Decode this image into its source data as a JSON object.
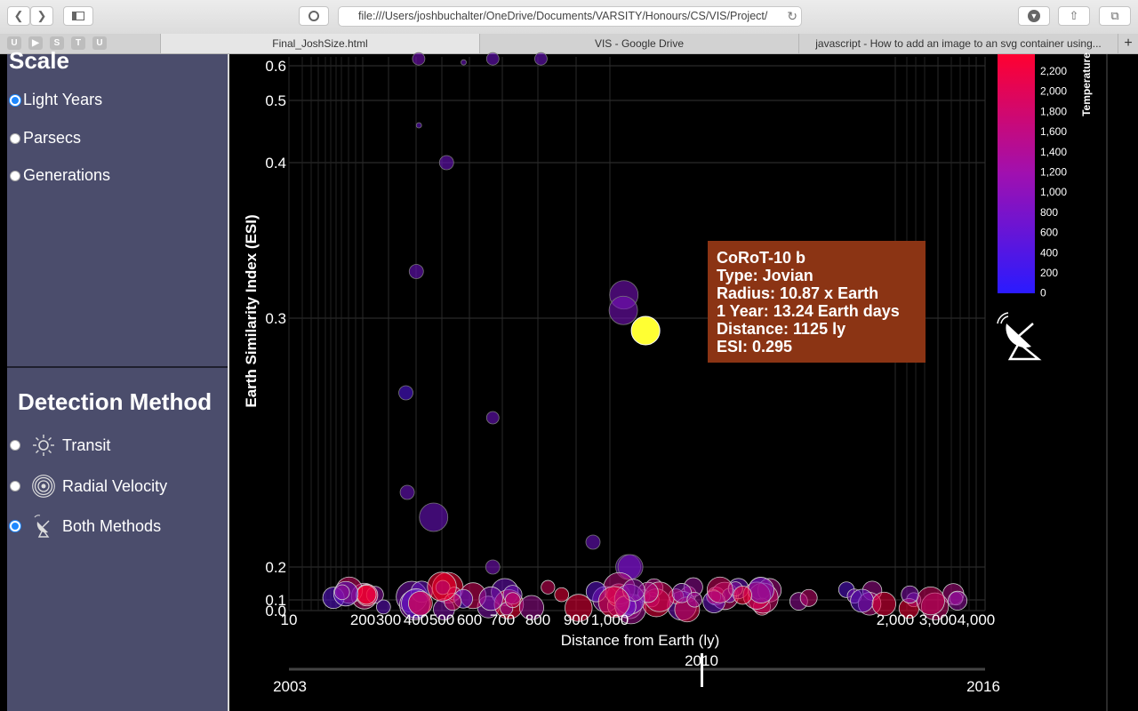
{
  "browser": {
    "url": "file:///Users/joshbuchalter/OneDrive/Documents/VARSITY/Honours/CS/VIS/Project/",
    "favorites": [
      "U",
      "",
      "S",
      "T",
      "U"
    ],
    "tabs": [
      {
        "label": "Final_JoshSize.html",
        "active": true
      },
      {
        "label": "VIS - Google Drive",
        "active": false
      },
      {
        "label": "javascript - How to add an image to an svg container using...",
        "active": false
      }
    ],
    "new_tab_glyph": "+"
  },
  "sidebar": {
    "scale_title": "Scale",
    "scale_options": [
      {
        "label": "Light Years",
        "selected": true
      },
      {
        "label": "Parsecs",
        "selected": false
      },
      {
        "label": "Generations",
        "selected": false
      }
    ],
    "detection_title": "Detection Method",
    "detection_options": [
      {
        "label": "Transit",
        "icon": "sun-icon",
        "selected": false
      },
      {
        "label": "Radial Velocity",
        "icon": "radial-waves-icon",
        "selected": false
      },
      {
        "label": "Both Methods",
        "icon": "satellite-dish-icon",
        "selected": true
      }
    ]
  },
  "tooltip": {
    "name": "CoRoT-10 b",
    "type": "Type: Jovian",
    "radius": "Radius: 10.87 x Earth",
    "year": "1 Year: 13.24 Earth days",
    "distance": "Distance: 1125 ly",
    "esi": "ESI: 0.295"
  },
  "timeline": {
    "start": "2003",
    "end": "2016",
    "current": "2010"
  },
  "chart_data": {
    "type": "scatter",
    "xlabel": "Distance from Earth (ly)",
    "ylabel": "Earth Similarity Index (ESI)",
    "y_ticks": [
      "0.6",
      "0.5",
      "0.4",
      "0.3",
      "0.2",
      "0.1",
      "0.0"
    ],
    "x_tick_labels": [
      "10",
      "200",
      "300",
      "400",
      "500",
      "600",
      "700",
      "800",
      "900",
      "1,000",
      "2,000",
      "3,000",
      "4,000"
    ],
    "legend": {
      "title": "Temperature",
      "ticks": [
        "2,200",
        "2,000",
        "1,800",
        "1,600",
        "1,400",
        "1,200",
        "1,000",
        "800",
        "600",
        "400",
        "200",
        "0"
      ],
      "color_low": "#2a1aff",
      "color_high": "#ff0030"
    },
    "highlighted_point": {
      "name": "CoRoT-10 b",
      "distance": 1125,
      "esi": 0.295,
      "color": "#ffff33"
    },
    "upper_points": [
      {
        "x": 410,
        "esi": 0.62,
        "temp": 800
      },
      {
        "x": 579,
        "esi": 0.61,
        "temp": 700
      },
      {
        "x": 671,
        "esi": 0.62,
        "temp": 700
      },
      {
        "x": 808,
        "esi": 0.62,
        "temp": 700
      },
      {
        "x": 411,
        "esi": 0.46,
        "temp": 600
      },
      {
        "x": 517,
        "esi": 0.4,
        "temp": 700
      },
      {
        "x": 401,
        "esi": 0.33,
        "temp": 700
      },
      {
        "x": 1049,
        "esi": 0.315,
        "temp": 800
      },
      {
        "x": 1047,
        "esi": 0.305,
        "temp": 800
      },
      {
        "x": 363,
        "esi": 0.27,
        "temp": 400
      },
      {
        "x": 671,
        "esi": 0.26,
        "temp": 700
      },
      {
        "x": 368,
        "esi": 0.23,
        "temp": 700
      },
      {
        "x": 468,
        "esi": 0.22,
        "temp": 700
      },
      {
        "x": 671,
        "esi": 0.2,
        "temp": 800
      },
      {
        "x": 950,
        "esi": 0.21,
        "temp": 700
      },
      {
        "x": 1064,
        "esi": 0.2,
        "temp": 700
      },
      {
        "x": 1072,
        "esi": 0.2,
        "temp": 800
      }
    ]
  }
}
